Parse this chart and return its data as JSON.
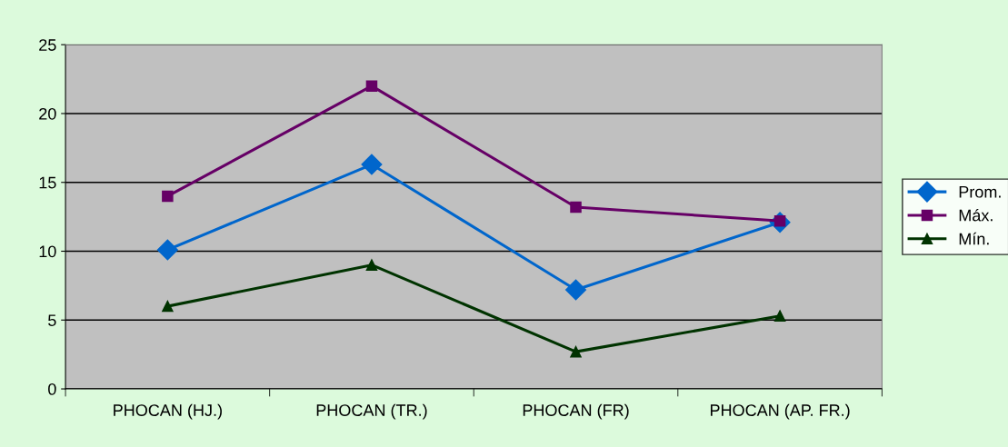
{
  "chart_data": {
    "type": "line",
    "categories": [
      "PHOCAN (HJ.)",
      "PHOCAN (TR.)",
      "PHOCAN (FR)",
      "PHOCAN (AP. FR.)"
    ],
    "series": [
      {
        "name": "Prom.",
        "color": "#0066cc",
        "marker": "diamond",
        "values": [
          10.1,
          16.3,
          7.2,
          12.1
        ]
      },
      {
        "name": "Máx.",
        "color": "#660066",
        "marker": "square",
        "values": [
          14,
          22,
          13.2,
          12.2
        ]
      },
      {
        "name": "Mín.",
        "color": "#003300",
        "marker": "triangle",
        "values": [
          6,
          9,
          2.7,
          5.3
        ]
      }
    ],
    "ylim": [
      0,
      25
    ],
    "yticks": [
      0,
      5,
      10,
      15,
      20,
      25
    ],
    "grid": "y",
    "legend": "right"
  }
}
